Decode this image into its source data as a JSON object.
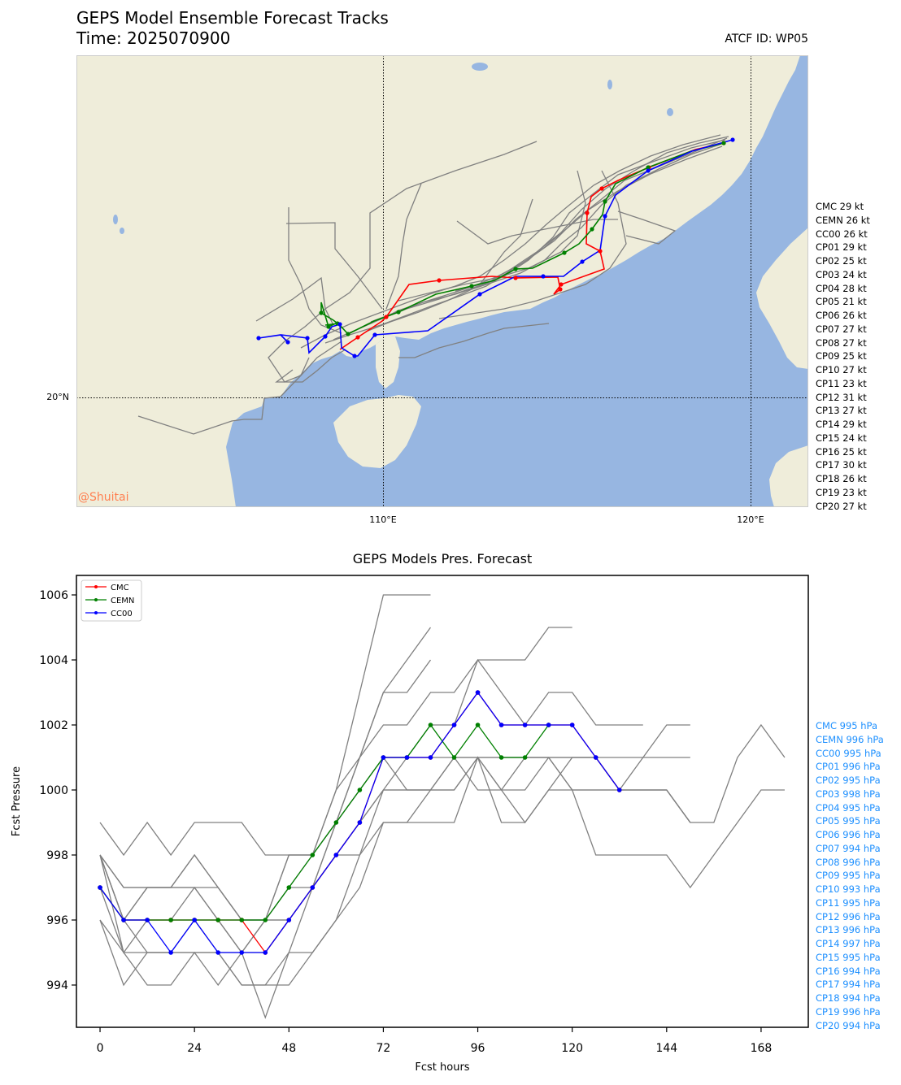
{
  "header": {
    "title": "GEPS Model Ensemble Forecast Tracks",
    "time_label": "Time: 2025070900",
    "atcf_label": "ATCF ID: WP05"
  },
  "map": {
    "lat_label": "20°N",
    "lon_labels": [
      "110°E",
      "120°E"
    ],
    "watermark": "@Shuitai",
    "colors": {
      "land": "#efedda",
      "ocean": "#97b6e1",
      "member": "#808080",
      "CMC": "#ff0000",
      "CEMN": "#008000",
      "CC00": "#0000ff",
      "watermark": "#ff7f50"
    }
  },
  "intensity_entries": [
    "CMC 29 kt",
    "CEMN 26 kt",
    "CC00 26 kt",
    "CP01 29 kt",
    "CP02 25 kt",
    "CP03 24 kt",
    "CP04 28 kt",
    "CP05 21 kt",
    "CP06 26 kt",
    "CP07 27 kt",
    "CP08 27 kt",
    "CP09 25 kt",
    "CP10 27 kt",
    "CP11 23 kt",
    "CP12 31 kt",
    "CP13 27 kt",
    "CP14 29 kt",
    "CP15 24 kt",
    "CP16 25 kt",
    "CP17 30 kt",
    "CP18 26 kt",
    "CP19 23 kt",
    "CP20 27 kt"
  ],
  "pressure_entries": [
    "CMC 995 hPa",
    "CEMN 996 hPa",
    "CC00 995 hPa",
    "CP01 996 hPa",
    "CP02 995 hPa",
    "CP03 998 hPa",
    "CP04 995 hPa",
    "CP05 995 hPa",
    "CP06 996 hPa",
    "CP07 994 hPa",
    "CP08 996 hPa",
    "CP09 995 hPa",
    "CP10 993 hPa",
    "CP11 995 hPa",
    "CP12 996 hPa",
    "CP13 996 hPa",
    "CP14 997 hPa",
    "CP15 995 hPa",
    "CP16 994 hPa",
    "CP17 994 hPa",
    "CP18 994 hPa",
    "CP19 996 hPa",
    "CP20 994 hPa"
  ],
  "chart_data": {
    "type": "line",
    "title": "GEPS Models Pres. Forecast",
    "xlabel": "Fcst hours",
    "ylabel": "Fcst Pressure",
    "xlim": [
      -6,
      180
    ],
    "ylim": [
      992.7,
      1006.6
    ],
    "xticks": [
      0,
      24,
      48,
      72,
      96,
      120,
      144,
      168
    ],
    "yticks": [
      994,
      996,
      998,
      1000,
      1002,
      1004,
      1006
    ],
    "legend": {
      "placement": "top-left",
      "entries": [
        "CMC",
        "CEMN",
        "CC00"
      ]
    },
    "highlight_series": [
      {
        "name": "CMC",
        "color": "#ff0000",
        "x": [
          0,
          6,
          12,
          18,
          24,
          30,
          36,
          42,
          48,
          54,
          60,
          66,
          72,
          78,
          84,
          90,
          96,
          102,
          108,
          114,
          120,
          126,
          132
        ],
        "values": [
          997,
          996,
          996,
          996,
          996,
          996,
          996,
          995,
          996,
          997,
          998,
          999,
          1001,
          1001,
          1001,
          1002,
          1003,
          1002,
          1002,
          1002,
          1002,
          1001,
          1000
        ]
      },
      {
        "name": "CEMN",
        "color": "#008000",
        "x": [
          0,
          6,
          12,
          18,
          24,
          30,
          36,
          42,
          48,
          54,
          60,
          66,
          72,
          78,
          84,
          90,
          96,
          102,
          108,
          114
        ],
        "values": [
          997,
          996,
          996,
          996,
          996,
          996,
          996,
          996,
          997,
          998,
          999,
          1000,
          1001,
          1001,
          1002,
          1001,
          1002,
          1001,
          1001,
          1002
        ]
      },
      {
        "name": "CC00",
        "color": "#0000ff",
        "x": [
          0,
          6,
          12,
          18,
          24,
          30,
          36,
          42,
          48,
          54,
          60,
          66,
          72,
          78,
          84,
          90,
          96,
          102,
          108,
          114,
          120,
          126,
          132
        ],
        "values": [
          997,
          996,
          996,
          995,
          996,
          995,
          995,
          995,
          996,
          997,
          998,
          999,
          1001,
          1001,
          1001,
          1002,
          1003,
          1002,
          1002,
          1002,
          1002,
          1001,
          1000
        ]
      }
    ],
    "member_series": [
      {
        "x": [
          0,
          6,
          12,
          18,
          24,
          30,
          36,
          42,
          48,
          54,
          60,
          66,
          72,
          78,
          84
        ],
        "values": [
          999,
          998,
          999,
          998,
          999,
          999,
          999,
          998,
          998,
          998,
          1000,
          1003,
          1006,
          1006,
          1006
        ]
      },
      {
        "x": [
          0,
          6,
          12,
          18,
          24,
          30,
          36,
          42,
          48,
          54,
          60,
          66,
          72,
          78,
          84
        ],
        "values": [
          998,
          995,
          996,
          996,
          997,
          996,
          995,
          995,
          996,
          997,
          999,
          1001,
          1003,
          1004,
          1005
        ]
      },
      {
        "x": [
          0,
          6,
          12,
          18,
          24,
          30,
          36,
          42,
          48,
          54,
          60,
          66,
          72,
          78,
          84
        ],
        "values": [
          998,
          996,
          997,
          997,
          997,
          996,
          995,
          996,
          998,
          998,
          999,
          1001,
          1003,
          1003,
          1004
        ]
      },
      {
        "x": [
          0,
          6,
          12,
          18,
          24,
          30,
          36,
          42,
          48,
          54,
          60,
          66,
          72,
          78,
          84,
          90,
          96,
          102,
          108,
          114,
          120
        ],
        "values": [
          996,
          994,
          995,
          995,
          996,
          995,
          995,
          996,
          998,
          998,
          999,
          1000,
          1001,
          1001,
          1002,
          1002,
          1004,
          1004,
          1004,
          1005,
          1005
        ]
      },
      {
        "x": [
          0,
          6,
          12,
          18,
          24,
          30,
          36,
          42,
          48,
          54,
          60,
          66,
          72,
          78,
          84,
          90,
          96,
          102,
          108,
          114,
          120,
          126,
          132,
          138
        ],
        "values": [
          998,
          997,
          997,
          997,
          998,
          997,
          996,
          996,
          997,
          998,
          1000,
          1001,
          1002,
          1002,
          1003,
          1003,
          1004,
          1003,
          1002,
          1003,
          1003,
          1002,
          1002,
          1002
        ]
      },
      {
        "x": [
          0,
          6,
          12,
          18,
          24,
          30,
          36,
          42,
          48,
          54,
          60,
          66,
          72,
          78,
          84,
          90,
          96,
          102,
          108,
          114,
          120,
          126,
          132,
          138,
          144,
          150
        ],
        "values": [
          998,
          996,
          997,
          997,
          998,
          997,
          996,
          996,
          996,
          997,
          998,
          999,
          1000,
          1000,
          1000,
          1001,
          1000,
          1000,
          1001,
          1001,
          1000,
          1000,
          1000,
          1000,
          1000,
          999
        ]
      },
      {
        "x": [
          0,
          6,
          12,
          18,
          24,
          30,
          36,
          42,
          48,
          54,
          60,
          66,
          72,
          78,
          84,
          90,
          96,
          102,
          108,
          114,
          120,
          126,
          132,
          138,
          144,
          150
        ],
        "values": [
          997,
          995,
          995,
          995,
          995,
          995,
          994,
          994,
          995,
          997,
          998,
          998,
          1000,
          1001,
          1001,
          1001,
          1001,
          1000,
          1000,
          1001,
          1001,
          1001,
          1001,
          1001,
          1001,
          1001
        ]
      },
      {
        "x": [
          0,
          6,
          12,
          18,
          24,
          30,
          36,
          42,
          48,
          54,
          60,
          66,
          72,
          78,
          84,
          90,
          96,
          102,
          108,
          114,
          120,
          126,
          132,
          138,
          144,
          150,
          156,
          162,
          168,
          174
        ],
        "values": [
          996,
          995,
          994,
          994,
          995,
          994,
          995,
          993,
          995,
          995,
          996,
          997,
          999,
          999,
          999,
          999,
          1001,
          999,
          999,
          1000,
          1000,
          1000,
          1000,
          1000,
          1000,
          999,
          999,
          1001,
          1002,
          1001
        ]
      },
      {
        "x": [
          0,
          6,
          12,
          18,
          24,
          30,
          36,
          42,
          48,
          54,
          60,
          66,
          72,
          78,
          84,
          90,
          96,
          102,
          108,
          114,
          120,
          126,
          132,
          138,
          144,
          150,
          156,
          162,
          168,
          174
        ],
        "values": [
          998,
          996,
          995,
          995,
          995,
          995,
          994,
          994,
          994,
          995,
          996,
          998,
          999,
          999,
          1000,
          1000,
          1001,
          1001,
          1001,
          1001,
          1000,
          998,
          998,
          998,
          998,
          997,
          998,
          999,
          1000,
          1000
        ]
      },
      {
        "x": [
          0,
          6,
          12,
          18,
          24,
          30,
          36,
          42,
          48,
          54,
          60,
          66,
          72,
          78,
          84,
          90,
          96,
          102,
          108,
          114,
          120,
          126,
          132,
          138,
          144,
          150
        ],
        "values": [
          997,
          996,
          996,
          996,
          996,
          996,
          996,
          996,
          996,
          997,
          999,
          1000,
          1001,
          1000,
          1000,
          1000,
          1001,
          1001,
          1001,
          1001,
          1001,
          1001,
          1000,
          1001,
          1002,
          1002
        ]
      },
      {
        "x": [
          0,
          6,
          12,
          18,
          24,
          30,
          36,
          42,
          48,
          54,
          60,
          66,
          72,
          78,
          84,
          90,
          96,
          102,
          108,
          114,
          120,
          126,
          132,
          138,
          144,
          150
        ],
        "values": [
          998,
          997,
          997,
          997,
          997,
          997,
          996,
          996,
          997,
          997,
          998,
          999,
          1000,
          1000,
          1000,
          1001,
          1001,
          1000,
          999,
          1000,
          1001,
          1001,
          1000,
          1000,
          1000,
          999
        ]
      }
    ]
  }
}
